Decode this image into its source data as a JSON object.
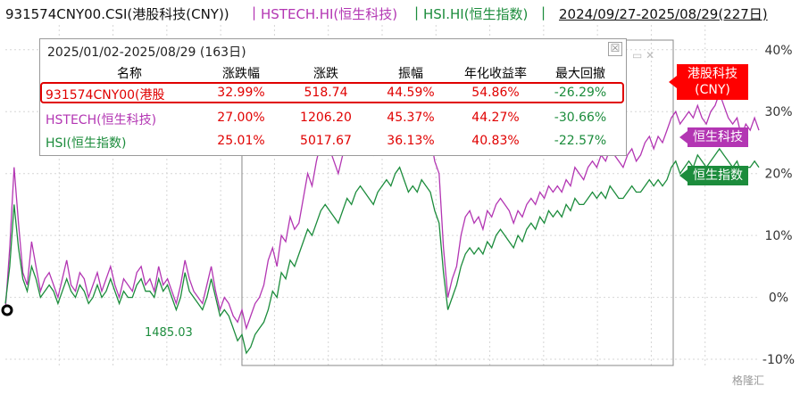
{
  "title": {
    "symbol": "931574CNY00.CSI(港股科技(CNY))",
    "sep1": "|",
    "hstech": "HSTECH.HI(恒生科技)",
    "sep2": "|",
    "hsi": "HSI.HI(恒生指数)",
    "sep3": "|",
    "range": "2024/09/27-2025/08/29(227日)"
  },
  "popup": {
    "header": "2025/01/02-2025/08/29 (163日)",
    "close": "☒",
    "columns": [
      "名称",
      "涨跌幅",
      "涨跌",
      "振幅",
      "年化收益率",
      "最大回撤"
    ],
    "rows": [
      {
        "name": "931574CNY00(港股",
        "change_pct": "32.99%",
        "change": "518.74",
        "amplitude": "44.59%",
        "annualized": "54.86%",
        "max_drawdown": "-26.29%",
        "color": "#e00000"
      },
      {
        "name": "HSTECH(恒生科技)",
        "change_pct": "27.00%",
        "change": "1206.20",
        "amplitude": "45.37%",
        "annualized": "44.27%",
        "max_drawdown": "-30.66%",
        "color": "#b336b3"
      },
      {
        "name": "HSI(恒生指数)",
        "change_pct": "25.01%",
        "change": "5017.67",
        "amplitude": "36.13%",
        "annualized": "40.83%",
        "max_drawdown": "-22.57%",
        "color": "#1c8c3c"
      }
    ]
  },
  "tags": {
    "red_line1": "港股科技",
    "red_line2": "(CNY)",
    "purple": "恒生科技",
    "green": "恒生指数"
  },
  "min_label": "1485.03",
  "watermark": "格隆汇",
  "window_buttons": "▭ ✕",
  "chart_data": {
    "type": "line",
    "title": "",
    "xlabel": "",
    "ylabel": "",
    "ylim": [
      -11,
      44
    ],
    "y_ticks": [
      "40%",
      "30%",
      "20%",
      "10%",
      "0%",
      "-10%"
    ],
    "y_tick_values": [
      40,
      30,
      20,
      10,
      0,
      -10
    ],
    "grid": true,
    "highlight_start_index": 54,
    "series": [
      {
        "name": "HSTECH.HI(恒生科技)",
        "color": "#b336b3",
        "values": [
          -2,
          8,
          21,
          12,
          4,
          2,
          9,
          5,
          1,
          3,
          4,
          2,
          0,
          3,
          6,
          2,
          1,
          4,
          3,
          0,
          2,
          4,
          1,
          3,
          5,
          2,
          0,
          3,
          2,
          1,
          4,
          5,
          2,
          3,
          1,
          5,
          2,
          3,
          1,
          -1,
          2,
          6,
          3,
          1,
          0,
          -1,
          2,
          5,
          1,
          -2,
          0,
          -1,
          -3,
          -4,
          -2,
          -5,
          -3,
          -1,
          0,
          2,
          6,
          8,
          5,
          10,
          9,
          13,
          11,
          12,
          16,
          20,
          18,
          22,
          25,
          26,
          24,
          22,
          20,
          23,
          25,
          24,
          26,
          27,
          25,
          24,
          23,
          25,
          26,
          27,
          26,
          28,
          29,
          27,
          25,
          26,
          25,
          28,
          27,
          26,
          22,
          20,
          8,
          0,
          3,
          5,
          10,
          13,
          14,
          12,
          13,
          11,
          14,
          13,
          15,
          16,
          15,
          14,
          12,
          14,
          13,
          15,
          16,
          15,
          17,
          16,
          18,
          17,
          18,
          17,
          19,
          18,
          21,
          20,
          19,
          21,
          22,
          21,
          23,
          22,
          24,
          23,
          22,
          21,
          23,
          24,
          22,
          23,
          25,
          26,
          24,
          26,
          25,
          27,
          29,
          30,
          28,
          29,
          30,
          29,
          31,
          29,
          28,
          30,
          31,
          33,
          31,
          29,
          28,
          29,
          26,
          28,
          27,
          29,
          27
        ]
      },
      {
        "name": "HSI.HI(恒生指数)",
        "color": "#1c8c3c",
        "values": [
          -1,
          5,
          15,
          8,
          3,
          1,
          5,
          3,
          0,
          1,
          2,
          1,
          -1,
          1,
          3,
          1,
          0,
          2,
          1,
          -1,
          0,
          2,
          0,
          1,
          3,
          1,
          -1,
          1,
          0,
          0,
          2,
          3,
          1,
          1,
          0,
          3,
          1,
          2,
          0,
          -2,
          0,
          4,
          1,
          0,
          -1,
          -2,
          0,
          3,
          0,
          -3,
          -2,
          -3,
          -5,
          -7,
          -6,
          -9,
          -8,
          -6,
          -5,
          -4,
          -2,
          1,
          0,
          4,
          3,
          6,
          5,
          7,
          9,
          11,
          10,
          12,
          14,
          15,
          14,
          13,
          12,
          14,
          16,
          15,
          17,
          18,
          17,
          16,
          15,
          17,
          18,
          19,
          18,
          20,
          21,
          19,
          17,
          18,
          17,
          19,
          18,
          17,
          14,
          12,
          4,
          -2,
          0,
          2,
          5,
          7,
          8,
          7,
          8,
          7,
          9,
          8,
          10,
          11,
          10,
          9,
          8,
          10,
          9,
          11,
          12,
          11,
          13,
          12,
          14,
          13,
          14,
          13,
          15,
          14,
          16,
          15,
          15,
          16,
          17,
          16,
          17,
          16,
          18,
          17,
          16,
          16,
          17,
          18,
          17,
          17,
          18,
          19,
          18,
          19,
          18,
          19,
          21,
          22,
          20,
          21,
          22,
          21,
          23,
          22,
          21,
          22,
          23,
          24,
          23,
          22,
          21,
          22,
          20,
          21,
          21,
          22,
          21
        ]
      }
    ]
  }
}
